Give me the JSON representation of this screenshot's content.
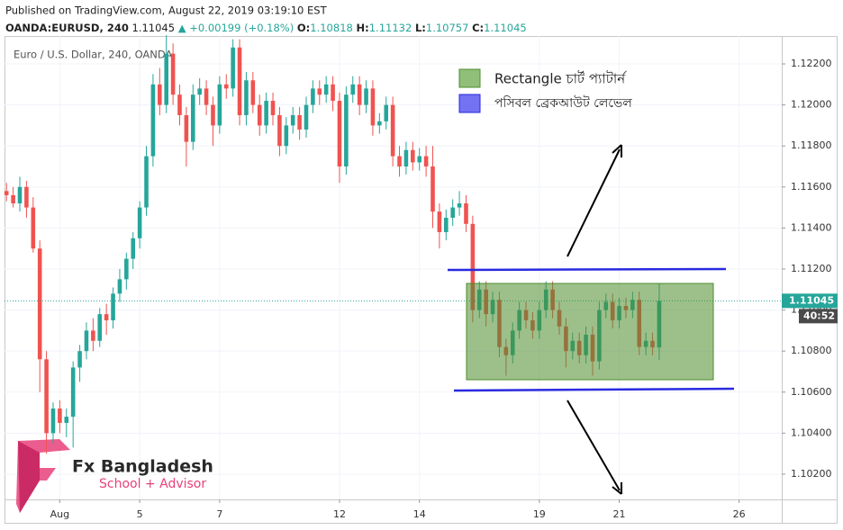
{
  "header": {
    "published": "Published on TradingView.com, August 22, 2019 03:19:10 EST",
    "symbol": "OANDA:EURUSD, 240",
    "last": "1.11045",
    "arrow": "▲",
    "change": "+0.00199 (+0.18%)",
    "o_label": "O:",
    "o": "1.10818",
    "h_label": "H:",
    "h": "1.11132",
    "l_label": "L:",
    "l": "1.10757",
    "c_label": "C:",
    "c": "1.11045"
  },
  "legend": {
    "rectangle": "Rectangle চার্ট প্যাটার্ন",
    "breakout": "পসিবল ব্রেকআউট লেভেল"
  },
  "logo": {
    "name": "Fx Bangladesh",
    "tagline": "School + Advisor"
  },
  "chart_data": {
    "type": "candlestick",
    "title": "Euro / U.S. Dollar, 240, OANDA",
    "up_color": "#26a69a",
    "down_color": "#ef5350",
    "last_price_label": "1.11045",
    "countdown": "40:52",
    "xlim": [
      -0.3,
      116.4
    ],
    "xticks": [
      {
        "value": 8,
        "label": "Aug"
      },
      {
        "value": 20,
        "label": "5"
      },
      {
        "value": 32,
        "label": "7"
      },
      {
        "value": 50,
        "label": "12"
      },
      {
        "value": 62,
        "label": "14"
      },
      {
        "value": 80,
        "label": "19"
      },
      {
        "value": 92,
        "label": "21"
      },
      {
        "value": 110,
        "label": "26"
      }
    ],
    "ylim": [
      1.10077,
      1.12336
    ],
    "yticks": [
      {
        "value": 1.102,
        "label": "1.10200"
      },
      {
        "value": 1.104,
        "label": "1.10400"
      },
      {
        "value": 1.106,
        "label": "1.10600"
      },
      {
        "value": 1.108,
        "label": "1.10800"
      },
      {
        "value": 1.11,
        "label": "1.11000"
      },
      {
        "value": 1.112,
        "label": "1.11200"
      },
      {
        "value": 1.114,
        "label": "1.11400"
      },
      {
        "value": 1.116,
        "label": "1.11600"
      },
      {
        "value": 1.118,
        "label": "1.11800"
      },
      {
        "value": 1.12,
        "label": "1.12000"
      },
      {
        "value": 1.122,
        "label": "1.12200"
      }
    ],
    "ohlc": [
      [
        1.1158,
        1.1162,
        1.1153,
        1.1156
      ],
      [
        1.1156,
        1.116,
        1.115,
        1.1152
      ],
      [
        1.1152,
        1.1165,
        1.1148,
        1.116
      ],
      [
        1.116,
        1.1163,
        1.1145,
        1.115
      ],
      [
        1.115,
        1.1155,
        1.1128,
        1.113
      ],
      [
        1.113,
        1.1134,
        1.106,
        1.1076
      ],
      [
        1.1076,
        1.108,
        1.103,
        1.104
      ],
      [
        1.104,
        1.1055,
        1.1035,
        1.1052
      ],
      [
        1.1052,
        1.1056,
        1.104,
        1.1045
      ],
      [
        1.1045,
        1.1052,
        1.1038,
        1.1048
      ],
      [
        1.1048,
        1.1075,
        1.1033,
        1.1072
      ],
      [
        1.1072,
        1.1083,
        1.1065,
        1.108
      ],
      [
        1.108,
        1.1094,
        1.1076,
        1.109
      ],
      [
        1.109,
        1.1096,
        1.108,
        1.1085
      ],
      [
        1.1085,
        1.1101,
        1.1082,
        1.1098
      ],
      [
        1.1098,
        1.1103,
        1.1088,
        1.1095
      ],
      [
        1.1095,
        1.1111,
        1.1091,
        1.1108
      ],
      [
        1.1108,
        1.112,
        1.1104,
        1.1115
      ],
      [
        1.1115,
        1.1128,
        1.111,
        1.1125
      ],
      [
        1.1125,
        1.1138,
        1.112,
        1.1135
      ],
      [
        1.1135,
        1.1153,
        1.113,
        1.115
      ],
      [
        1.115,
        1.118,
        1.1146,
        1.1175
      ],
      [
        1.1175,
        1.1215,
        1.117,
        1.121
      ],
      [
        1.121,
        1.1218,
        1.1195,
        1.12
      ],
      [
        1.12,
        1.1234,
        1.1196,
        1.1225
      ],
      [
        1.1225,
        1.123,
        1.12,
        1.1205
      ],
      [
        1.1205,
        1.121,
        1.119,
        1.1195
      ],
      [
        1.1195,
        1.1199,
        1.117,
        1.1182
      ],
      [
        1.1182,
        1.121,
        1.1178,
        1.1205
      ],
      [
        1.1205,
        1.1213,
        1.12,
        1.1208
      ],
      [
        1.1208,
        1.1212,
        1.1195,
        1.12
      ],
      [
        1.12,
        1.1204,
        1.118,
        1.119
      ],
      [
        1.119,
        1.1214,
        1.1186,
        1.121
      ],
      [
        1.121,
        1.1215,
        1.1203,
        1.1208
      ],
      [
        1.1208,
        1.1232,
        1.1204,
        1.1228
      ],
      [
        1.1228,
        1.1232,
        1.119,
        1.1195
      ],
      [
        1.1195,
        1.1216,
        1.119,
        1.1212
      ],
      [
        1.1212,
        1.1216,
        1.1196,
        1.12
      ],
      [
        1.12,
        1.1205,
        1.1185,
        1.119
      ],
      [
        1.119,
        1.1206,
        1.1186,
        1.1202
      ],
      [
        1.1202,
        1.1206,
        1.119,
        1.1195
      ],
      [
        1.1195,
        1.1199,
        1.1175,
        1.118
      ],
      [
        1.118,
        1.1194,
        1.1176,
        1.119
      ],
      [
        1.119,
        1.1199,
        1.1186,
        1.1195
      ],
      [
        1.1195,
        1.1199,
        1.1183,
        1.1188
      ],
      [
        1.1188,
        1.1204,
        1.1184,
        1.12
      ],
      [
        1.12,
        1.1212,
        1.1196,
        1.1208
      ],
      [
        1.1208,
        1.1212,
        1.12,
        1.1205
      ],
      [
        1.1205,
        1.1214,
        1.1201,
        1.121
      ],
      [
        1.121,
        1.1214,
        1.1197,
        1.1202
      ],
      [
        1.1202,
        1.1206,
        1.1162,
        1.117
      ],
      [
        1.117,
        1.1209,
        1.1166,
        1.1205
      ],
      [
        1.1205,
        1.1214,
        1.1201,
        1.121
      ],
      [
        1.121,
        1.1214,
        1.1195,
        1.12
      ],
      [
        1.12,
        1.1212,
        1.1196,
        1.1208
      ],
      [
        1.1208,
        1.1212,
        1.1185,
        1.119
      ],
      [
        1.119,
        1.1196,
        1.1186,
        1.1192
      ],
      [
        1.1192,
        1.1204,
        1.1188,
        1.12
      ],
      [
        1.12,
        1.1204,
        1.117,
        1.1175
      ],
      [
        1.1175,
        1.118,
        1.1165,
        1.117
      ],
      [
        1.117,
        1.1182,
        1.1166,
        1.1178
      ],
      [
        1.1178,
        1.1182,
        1.1168,
        1.1172
      ],
      [
        1.1172,
        1.1179,
        1.1168,
        1.1175
      ],
      [
        1.1175,
        1.118,
        1.1165,
        1.117
      ],
      [
        1.117,
        1.118,
        1.114,
        1.1148
      ],
      [
        1.1148,
        1.1152,
        1.113,
        1.1138
      ],
      [
        1.1138,
        1.1149,
        1.1134,
        1.1145
      ],
      [
        1.1145,
        1.1154,
        1.1141,
        1.115
      ],
      [
        1.115,
        1.1158,
        1.1146,
        1.1152
      ],
      [
        1.1152,
        1.1156,
        1.1138,
        1.1142
      ],
      [
        1.1142,
        1.1146,
        1.1094,
        1.11
      ],
      [
        1.11,
        1.1114,
        1.1096,
        1.111
      ],
      [
        1.111,
        1.1114,
        1.1092,
        1.1098
      ],
      [
        1.1098,
        1.1109,
        1.1094,
        1.1105
      ],
      [
        1.1105,
        1.1109,
        1.1077,
        1.1082
      ],
      [
        1.1082,
        1.1086,
        1.1068,
        1.1078
      ],
      [
        1.1078,
        1.1094,
        1.1074,
        1.109
      ],
      [
        1.109,
        1.1104,
        1.1086,
        1.11
      ],
      [
        1.11,
        1.1104,
        1.1091,
        1.1095
      ],
      [
        1.1095,
        1.1099,
        1.1086,
        1.109
      ],
      [
        1.109,
        1.1104,
        1.1086,
        1.11
      ],
      [
        1.11,
        1.1114,
        1.1096,
        1.111
      ],
      [
        1.111,
        1.1114,
        1.1096,
        1.11
      ],
      [
        1.11,
        1.1104,
        1.1088,
        1.1092
      ],
      [
        1.1092,
        1.1096,
        1.1072,
        1.108
      ],
      [
        1.108,
        1.1089,
        1.1076,
        1.1085
      ],
      [
        1.1085,
        1.1089,
        1.1074,
        1.1078
      ],
      [
        1.1078,
        1.1092,
        1.1074,
        1.1088
      ],
      [
        1.1088,
        1.1092,
        1.1068,
        1.1075
      ],
      [
        1.1075,
        1.1104,
        1.1071,
        1.11
      ],
      [
        1.11,
        1.1108,
        1.1096,
        1.1104
      ],
      [
        1.1104,
        1.1108,
        1.1091,
        1.1095
      ],
      [
        1.1095,
        1.1106,
        1.1091,
        1.1102
      ],
      [
        1.1102,
        1.1106,
        1.1096,
        1.11
      ],
      [
        1.11,
        1.1109,
        1.1096,
        1.1105
      ],
      [
        1.1105,
        1.1109,
        1.1078,
        1.1082
      ],
      [
        1.1082,
        1.1089,
        1.1078,
        1.1085
      ],
      [
        1.1085,
        1.1089,
        1.1078,
        1.10818
      ],
      [
        1.10818,
        1.11132,
        1.10757,
        1.11045
      ]
    ]
  }
}
